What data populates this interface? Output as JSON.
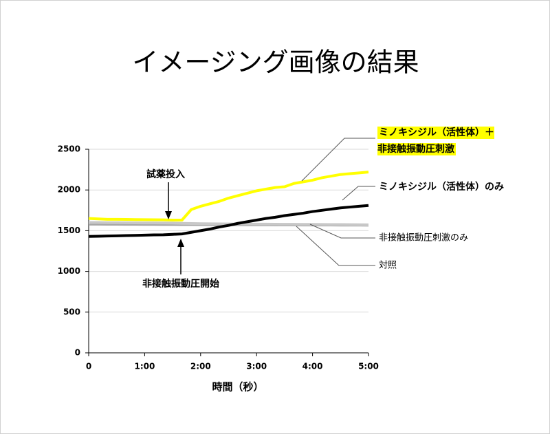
{
  "chart_data": {
    "type": "line",
    "title": "イメージング画像の結果",
    "x_label": "時間（秒）",
    "x": [
      0,
      10,
      20,
      30,
      40,
      50,
      60,
      70,
      80,
      90,
      100,
      110,
      120,
      130,
      140,
      150,
      160,
      170,
      180,
      190,
      200,
      210,
      220,
      230,
      240,
      250,
      260,
      270,
      280,
      290,
      300
    ],
    "xlim": [
      0,
      300
    ],
    "xticks": [
      0,
      {
        "value": 60,
        "label": "1:00"
      },
      {
        "value": 120,
        "label": "2:00"
      },
      {
        "value": 180,
        "label": "3:00"
      },
      {
        "value": 240,
        "label": "4:00"
      },
      {
        "value": 300,
        "label": "5:00"
      }
    ],
    "ylim": [
      0,
      2500
    ],
    "yticks": [
      0,
      500,
      1000,
      1500,
      2000,
      2500
    ],
    "grid": true,
    "series": [
      {
        "name": "対照",
        "color": "#a6a6a6",
        "values": [
          1580,
          1580,
          1579,
          1579,
          1578,
          1578,
          1577,
          1577,
          1576,
          1576,
          1575,
          1575,
          1574,
          1574,
          1573,
          1573,
          1573,
          1572,
          1572,
          1572,
          1571,
          1571,
          1571,
          1570,
          1570,
          1570,
          1570,
          1569,
          1569,
          1569,
          1568
        ]
      },
      {
        "name": "非接触振動圧刺激のみ",
        "color": "#c8c8c8",
        "values": [
          1600,
          1600,
          1598,
          1598,
          1597,
          1596,
          1595,
          1595,
          1594,
          1593,
          1590,
          1588,
          1586,
          1585,
          1584,
          1583,
          1582,
          1581,
          1580,
          1580,
          1579,
          1578,
          1578,
          1577,
          1577,
          1576,
          1575,
          1575,
          1574,
          1573,
          1572
        ]
      },
      {
        "name": "ミノキシジル（活性体）のみ",
        "color": "#000000",
        "values": [
          1430,
          1432,
          1435,
          1437,
          1440,
          1442,
          1445,
          1448,
          1450,
          1455,
          1460,
          1480,
          1500,
          1520,
          1545,
          1565,
          1590,
          1610,
          1630,
          1650,
          1665,
          1685,
          1700,
          1715,
          1735,
          1750,
          1765,
          1780,
          1790,
          1800,
          1810
        ]
      },
      {
        "name": "ミノキシジル（活性体）＋非接触振動圧刺激",
        "color": "#ffff00",
        "values": [
          1650,
          1645,
          1640,
          1640,
          1638,
          1636,
          1635,
          1634,
          1633,
          1630,
          1630,
          1760,
          1800,
          1830,
          1860,
          1900,
          1930,
          1960,
          1990,
          2010,
          2030,
          2040,
          2080,
          2100,
          2120,
          2150,
          2170,
          2190,
          2200,
          2210,
          2220
        ]
      }
    ],
    "annotations": [
      "試薬投入",
      "非接触振動圧開始"
    ]
  }
}
